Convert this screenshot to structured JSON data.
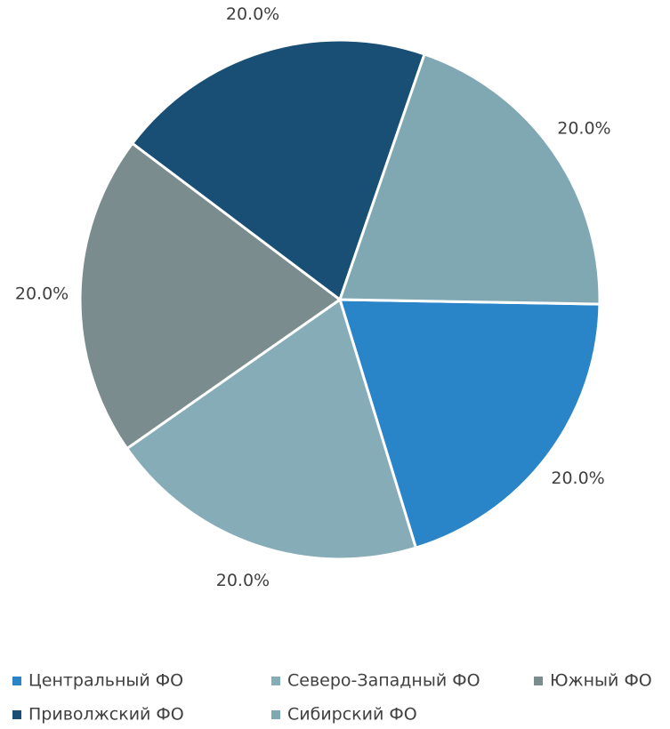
{
  "chart_data": {
    "type": "pie",
    "categories": [
      "Центральный ФО",
      "Северо-Западный ФО",
      "Южный ФО",
      "Приволжский ФО",
      "Сибирский ФО"
    ],
    "values": [
      20,
      20,
      20,
      20,
      20
    ],
    "value_labels": [
      "20.0%",
      "20.0%",
      "20.0%",
      "20.0%",
      "20.0%"
    ],
    "colors": [
      "#2a84c8",
      "#86acb7",
      "#7a8c8d",
      "#1a4f75",
      "#7fa8b3"
    ],
    "legend": "bottom"
  }
}
